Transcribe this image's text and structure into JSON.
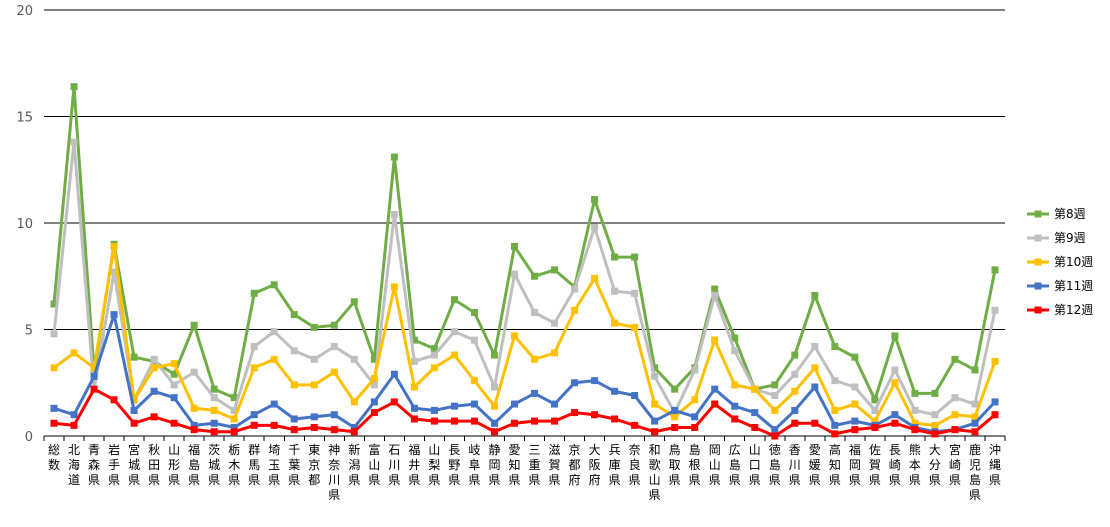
{
  "chart_data": {
    "type": "line",
    "title": "",
    "xlabel": "",
    "ylabel": "",
    "ylim": [
      0,
      20
    ],
    "yticks": [
      0,
      5,
      10,
      15,
      20
    ],
    "grid": "horizontal",
    "legend_position": "right",
    "categories": [
      "総数",
      "北海道",
      "青森県",
      "岩手県",
      "宮城県",
      "秋田県",
      "山形県",
      "福島県",
      "茨城県",
      "栃木県",
      "群馬県",
      "埼玉県",
      "千葉県",
      "東京都",
      "神奈川県",
      "新潟県",
      "富山県",
      "石川県",
      "福井県",
      "山梨県",
      "長野県",
      "岐阜県",
      "静岡県",
      "愛知県",
      "三重県",
      "滋賀県",
      "京都府",
      "大阪府",
      "兵庫県",
      "奈良県",
      "和歌山県",
      "鳥取県",
      "島根県",
      "岡山県",
      "広島県",
      "山口県",
      "徳島県",
      "香川県",
      "愛媛県",
      "高知県",
      "福岡県",
      "佐賀県",
      "長崎県",
      "熊本県",
      "大分県",
      "宮崎県",
      "鹿児島県",
      "沖縄県"
    ],
    "series": [
      {
        "name": "第8週",
        "color": "#70ad47",
        "values": [
          6.2,
          16.4,
          3.0,
          9.0,
          3.7,
          3.5,
          2.9,
          5.2,
          2.2,
          1.8,
          6.7,
          7.1,
          5.7,
          5.1,
          5.2,
          6.3,
          3.6,
          13.1,
          4.5,
          4.1,
          6.4,
          5.8,
          3.8,
          8.9,
          7.5,
          7.8,
          7.0,
          11.1,
          8.4,
          8.4,
          3.2,
          2.2,
          3.2,
          6.9,
          4.6,
          2.2,
          2.4,
          3.8,
          6.6,
          4.2,
          3.7,
          1.7,
          4.7,
          2.0,
          2.0,
          3.6,
          3.1,
          7.8
        ]
      },
      {
        "name": "第9週",
        "color": "#bfbfbf",
        "values": [
          4.8,
          13.8,
          2.2,
          7.7,
          1.7,
          3.6,
          2.4,
          3.0,
          1.8,
          1.2,
          4.2,
          4.9,
          4.0,
          3.6,
          4.2,
          3.6,
          2.4,
          10.4,
          3.5,
          3.8,
          4.9,
          4.5,
          2.3,
          7.6,
          5.8,
          5.3,
          6.9,
          9.8,
          6.8,
          6.7,
          2.8,
          1.1,
          3.1,
          6.6,
          4.0,
          2.2,
          1.9,
          2.9,
          4.2,
          2.6,
          2.3,
          1.2,
          3.1,
          1.2,
          1.0,
          1.8,
          1.5,
          5.9
        ]
      },
      {
        "name": "第10週",
        "color": "#ffc000",
        "values": [
          3.2,
          3.9,
          3.2,
          8.9,
          1.7,
          3.2,
          3.4,
          1.3,
          1.2,
          0.8,
          3.2,
          3.6,
          2.4,
          2.4,
          3.0,
          1.6,
          2.7,
          7.0,
          2.3,
          3.2,
          3.8,
          2.6,
          1.4,
          4.7,
          3.6,
          3.9,
          5.9,
          7.4,
          5.3,
          5.1,
          1.5,
          0.9,
          1.7,
          4.5,
          2.4,
          2.2,
          1.2,
          2.1,
          3.2,
          1.2,
          1.5,
          0.7,
          2.5,
          0.6,
          0.5,
          1.0,
          0.9,
          3.5
        ]
      },
      {
        "name": "第11週",
        "color": "#4472c4",
        "values": [
          1.3,
          1.0,
          2.8,
          5.7,
          1.2,
          2.1,
          1.8,
          0.5,
          0.6,
          0.4,
          1.0,
          1.5,
          0.8,
          0.9,
          1.0,
          0.4,
          1.6,
          2.9,
          1.3,
          1.2,
          1.4,
          1.5,
          0.6,
          1.5,
          2.0,
          1.5,
          2.5,
          2.6,
          2.1,
          1.9,
          0.7,
          1.2,
          0.9,
          2.2,
          1.4,
          1.1,
          0.3,
          1.2,
          2.3,
          0.5,
          0.7,
          0.5,
          1.0,
          0.4,
          0.2,
          0.3,
          0.6,
          1.6
        ]
      },
      {
        "name": "第12週",
        "color": "#ff0000",
        "values": [
          0.6,
          0.5,
          2.2,
          1.7,
          0.6,
          0.9,
          0.6,
          0.3,
          0.2,
          0.2,
          0.5,
          0.5,
          0.3,
          0.4,
          0.3,
          0.2,
          1.1,
          1.6,
          0.8,
          0.7,
          0.7,
          0.7,
          0.2,
          0.6,
          0.7,
          0.7,
          1.1,
          1.0,
          0.8,
          0.5,
          0.2,
          0.4,
          0.4,
          1.5,
          0.8,
          0.4,
          0.0,
          0.6,
          0.6,
          0.1,
          0.3,
          0.4,
          0.6,
          0.3,
          0.1,
          0.3,
          0.2,
          1.0
        ]
      }
    ]
  }
}
